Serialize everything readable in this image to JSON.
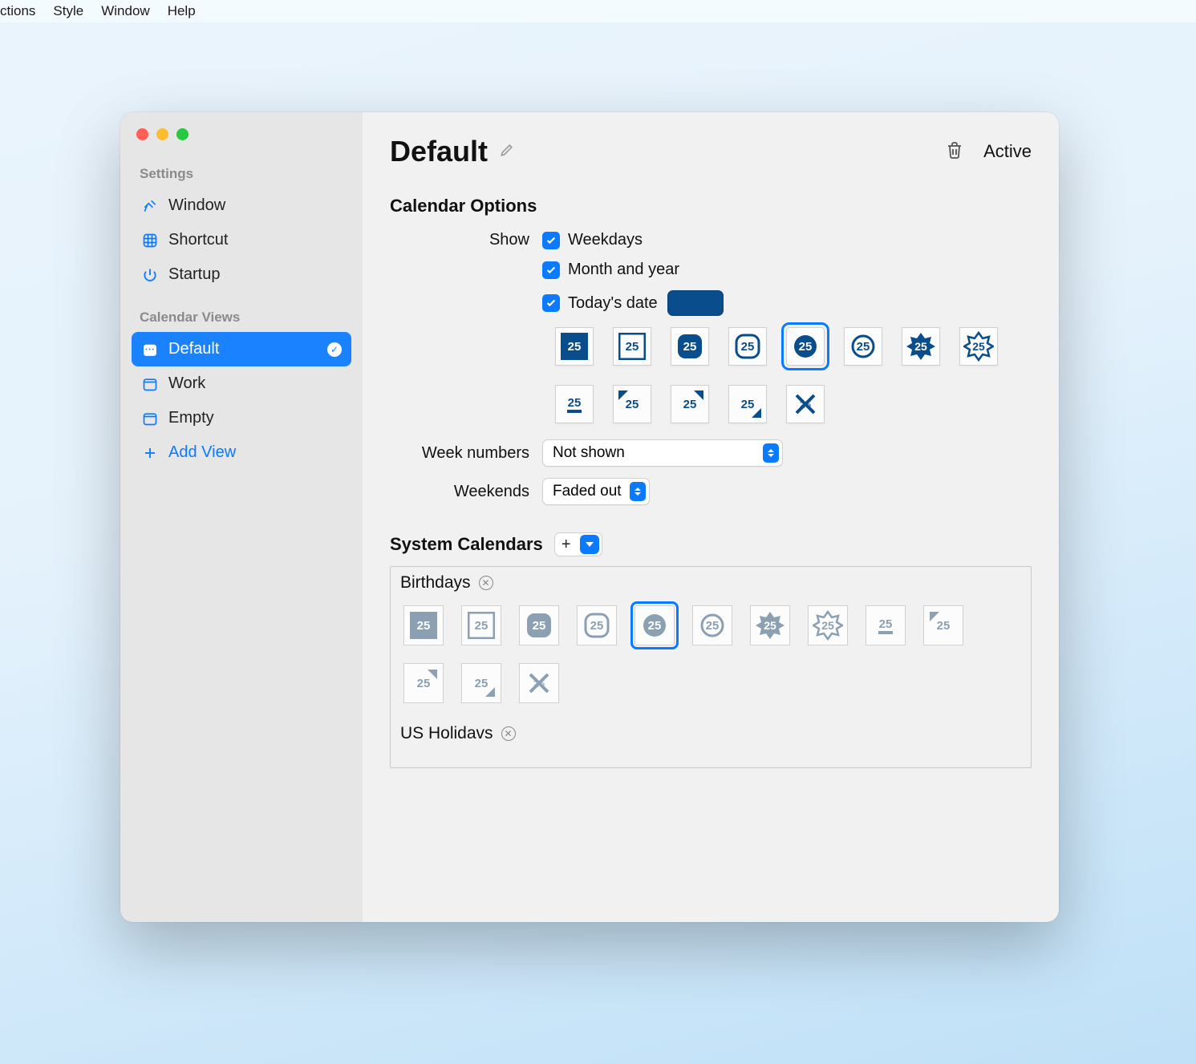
{
  "menubar": {
    "items": [
      "ctions",
      "Style",
      "Window",
      "Help"
    ]
  },
  "colors": {
    "accent": "#0a7aff",
    "brand_dark": "#0a4d8c",
    "muted": "#8ca0b3",
    "window_bg": "#f2f1f1",
    "sidebar_bg": "#e7e6e6"
  },
  "sidebar": {
    "settings_label": "Settings",
    "settings_items": [
      {
        "icon": "pin-icon",
        "label": "Window"
      },
      {
        "icon": "command-icon",
        "label": "Shortcut"
      },
      {
        "icon": "power-icon",
        "label": "Startup"
      }
    ],
    "views_label": "Calendar Views",
    "views_items": [
      {
        "icon": "calendar-icon",
        "label": "Default",
        "selected": true
      },
      {
        "icon": "calendar-icon",
        "label": "Work"
      },
      {
        "icon": "calendar-icon",
        "label": "Empty"
      }
    ],
    "add_view_label": "Add View"
  },
  "header": {
    "title": "Default",
    "active_label": "Active"
  },
  "calendar_options": {
    "section_title": "Calendar Options",
    "show_label": "Show",
    "checkboxes": [
      {
        "label": "Weekdays",
        "checked": true
      },
      {
        "label": "Month and year",
        "checked": true
      },
      {
        "label": "Today's date",
        "checked": true,
        "swatch": "#0a4d8c"
      }
    ],
    "date_styles": {
      "glyph": "25",
      "count": 13,
      "selected_index": 4,
      "color": "#0a4d8c"
    },
    "week_numbers": {
      "label": "Week numbers",
      "value": "Not shown"
    },
    "weekends": {
      "label": "Weekends",
      "value": "Faded out"
    }
  },
  "system_calendars": {
    "section_title": "System Calendars",
    "calendars": [
      {
        "name": "Birthdays",
        "style_glyph": "25",
        "style_count": 13,
        "selected_index": 4,
        "color": "#8ca0b3"
      },
      {
        "name": "US Holidavs",
        "style_glyph": "25",
        "style_count": 0,
        "selected_index": -1,
        "color": "#8ca0b3"
      }
    ]
  }
}
